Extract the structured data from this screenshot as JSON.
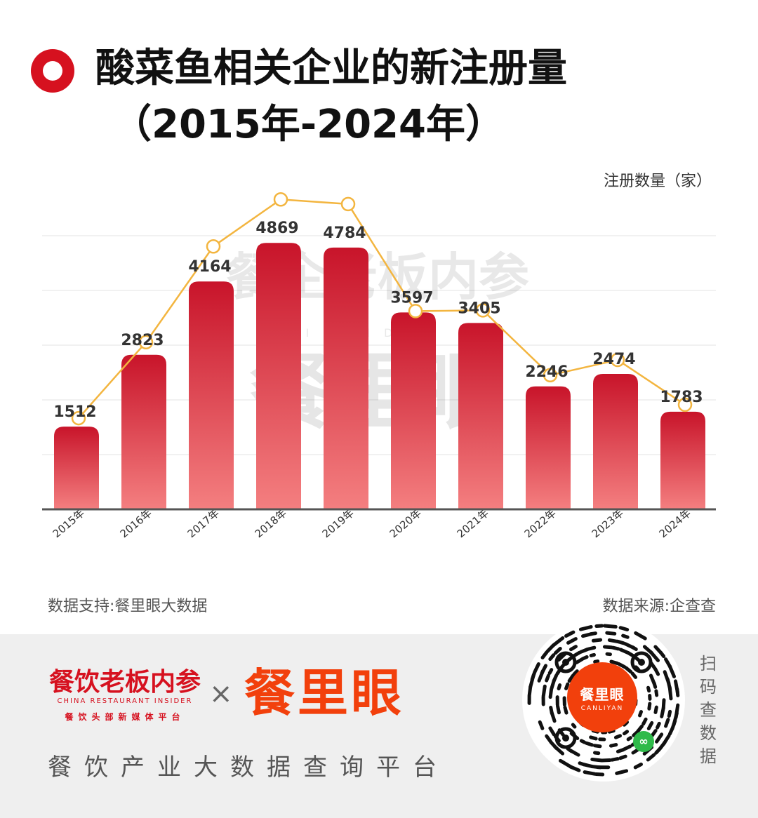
{
  "header": {
    "title": "酸菜鱼相关企业的新注册量",
    "subtitle": "（2015年-2024年）"
  },
  "chart_data": {
    "type": "bar",
    "title": "酸菜鱼相关企业的新注册量",
    "subtitle": "（2015年-2024年）",
    "ylabel": "注册数量（家）",
    "categories": [
      "2015年",
      "2016年",
      "2017年",
      "2018年",
      "2019年",
      "2020年",
      "2021年",
      "2022年",
      "2023年",
      "2024年"
    ],
    "values": [
      1512,
      2823,
      4164,
      4869,
      4784,
      3597,
      3405,
      2246,
      2474,
      1783
    ],
    "overlay_line": true,
    "ylim": [
      0,
      5000
    ],
    "grid": true,
    "colors": {
      "bar_top": "#c8142a",
      "bar_bottom": "#f47f80",
      "line": "#f3b53f",
      "axis": "#555555",
      "grid": "#e3e3e3"
    }
  },
  "sources": {
    "support": "数据支持:餐里眼大数据",
    "origin": "数据来源:企查查"
  },
  "watermark": {
    "text1": "餐企老板内参",
    "text2": "INSIDER",
    "text3": "餐里眼"
  },
  "footer": {
    "brand1": "餐饮老板内参",
    "brand1_en": "CHINA RESTAURANT INSIDER",
    "brand1_sub": "餐饮头部新媒体平台",
    "times": "×",
    "brand2": "餐里眼",
    "slogan": "餐饮产业大数据查询平台",
    "qr_brand": "餐里眼",
    "qr_brand_en": "CANLIYAN",
    "scan_text": "扫码查数据",
    "wechat_icon": "mini-program-icon"
  }
}
